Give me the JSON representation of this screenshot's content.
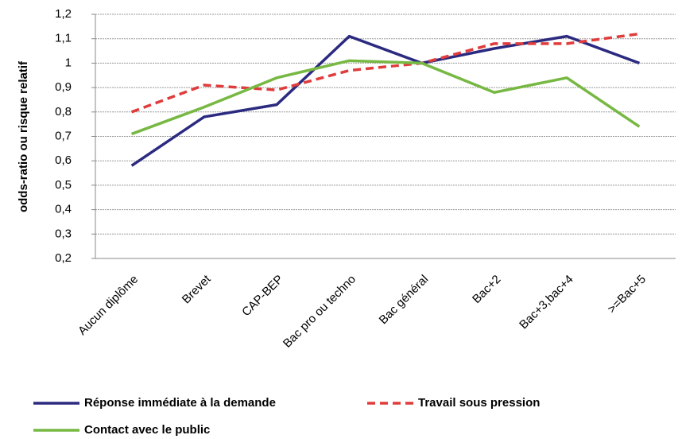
{
  "chart_data": {
    "type": "line",
    "y_label": "odds-ratio ou risque relatif",
    "categories": [
      "Aucun diplôme",
      "Brevet",
      "CAP-BEP",
      "Bac pro ou techno",
      "Bac général",
      "Bac+2",
      "Bac+3,bac+4",
      ">=Bac+5"
    ],
    "series": [
      {
        "name": "Réponse immédiate à la demande",
        "color": "#2b2a80",
        "dashed": false,
        "values": [
          0.58,
          0.78,
          0.83,
          1.11,
          1.0,
          1.06,
          1.11,
          1.0
        ]
      },
      {
        "name": "Travail sous pression",
        "color": "#e03c3c",
        "dashed": true,
        "values": [
          0.8,
          0.91,
          0.89,
          0.97,
          1.0,
          1.08,
          1.08,
          1.12
        ]
      },
      {
        "name": "Contact avec le public",
        "color": "#77b843",
        "dashed": false,
        "values": [
          0.71,
          0.82,
          0.94,
          1.01,
          1.0,
          0.88,
          0.94,
          0.74
        ]
      }
    ],
    "ylim": [
      0.2,
      1.2
    ],
    "yticks": [
      {
        "value": 0.2,
        "label": "0,2"
      },
      {
        "value": 0.3,
        "label": "0,3"
      },
      {
        "value": 0.4,
        "label": "0,4"
      },
      {
        "value": 0.5,
        "label": "0,5"
      },
      {
        "value": 0.6,
        "label": "0,6"
      },
      {
        "value": 0.7,
        "label": "0,7"
      },
      {
        "value": 0.8,
        "label": "0,8"
      },
      {
        "value": 0.9,
        "label": "0,9"
      },
      {
        "value": 1,
        "label": "1"
      },
      {
        "value": 1.1,
        "label": "1,1"
      },
      {
        "value": 1.2,
        "label": "1,2"
      }
    ],
    "grid": true
  }
}
